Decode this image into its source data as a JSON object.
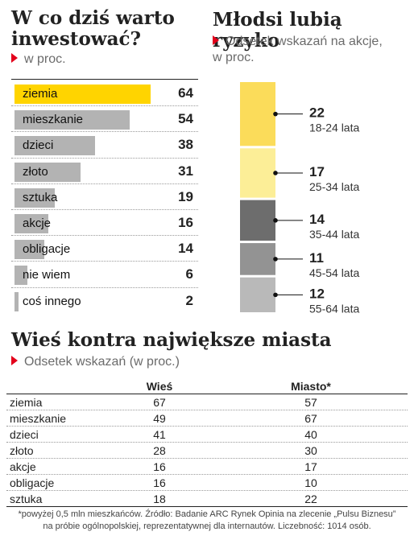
{
  "left_panel": {
    "title_line1": "W co dziś warto",
    "title_line2": "inwestować?",
    "subtitle": "w proc."
  },
  "right_panel": {
    "title": "Młodsi lubią ryzyko",
    "subtitle_line1": "Odsetek wskazań na akcje,",
    "subtitle_line2": "w proc."
  },
  "table_section": {
    "title": "Wieś kontra największe miasta",
    "subtitle": "Odsetek wskazań (w proc.)",
    "col_headers": [
      "Wieś",
      "Miasto*"
    ]
  },
  "footnote_line1": "*powyżej 0,5 mln mieszkańców. Źródło: Badanie ARC Rynek Opinia na zlecenie „Pulsu Biznesu”",
  "footnote_line2": "na próbie ogólnopolskiej, reprezentatywnej dla internautów. Liczebność: 1014 osób.",
  "colors": {
    "highlight": "#ffd400",
    "bar_gray": "#b3b3b3",
    "accent_red": "#e3001b"
  },
  "chart_data": [
    {
      "type": "bar",
      "orientation": "horizontal",
      "title": "W co dziś warto inwestować?",
      "subtitle": "w proc.",
      "categories": [
        "ziemia",
        "mieszkanie",
        "dzieci",
        "złoto",
        "sztuka",
        "akcje",
        "obligacje",
        "nie wiem",
        "coś innego"
      ],
      "values": [
        64,
        54,
        38,
        31,
        19,
        16,
        14,
        6,
        2
      ],
      "xlim": [
        0,
        72
      ],
      "grid": false,
      "highlight_color": "#ffd400"
    },
    {
      "type": "bar",
      "orientation": "stacked-vertical",
      "title": "Młodsi lubią ryzyko",
      "subtitle": "Odsetek wskazań na akcje, w proc.",
      "categories": [
        "18-24 lata",
        "25-34 lata",
        "35-44 lata",
        "45-54 lata",
        "55-64 lata"
      ],
      "values": [
        22,
        17,
        14,
        11,
        12
      ],
      "colors": [
        "#fbdc5a",
        "#fcee97",
        "#6d6d6d",
        "#939393",
        "#b9b9b9"
      ]
    },
    {
      "type": "table",
      "title": "Wieś kontra największe miasta",
      "subtitle": "Odsetek wskazań (w proc.)",
      "columns": [
        "",
        "Wieś",
        "Miasto*"
      ],
      "rows": [
        {
          "label": "ziemia",
          "values": [
            67,
            57
          ]
        },
        {
          "label": "mieszkanie",
          "values": [
            49,
            67
          ]
        },
        {
          "label": "dzieci",
          "values": [
            41,
            40
          ]
        },
        {
          "label": "złoto",
          "values": [
            28,
            30
          ]
        },
        {
          "label": "akcje",
          "values": [
            16,
            17
          ]
        },
        {
          "label": "obligacje",
          "values": [
            16,
            10
          ]
        },
        {
          "label": "sztuka",
          "values": [
            18,
            22
          ]
        }
      ]
    }
  ]
}
